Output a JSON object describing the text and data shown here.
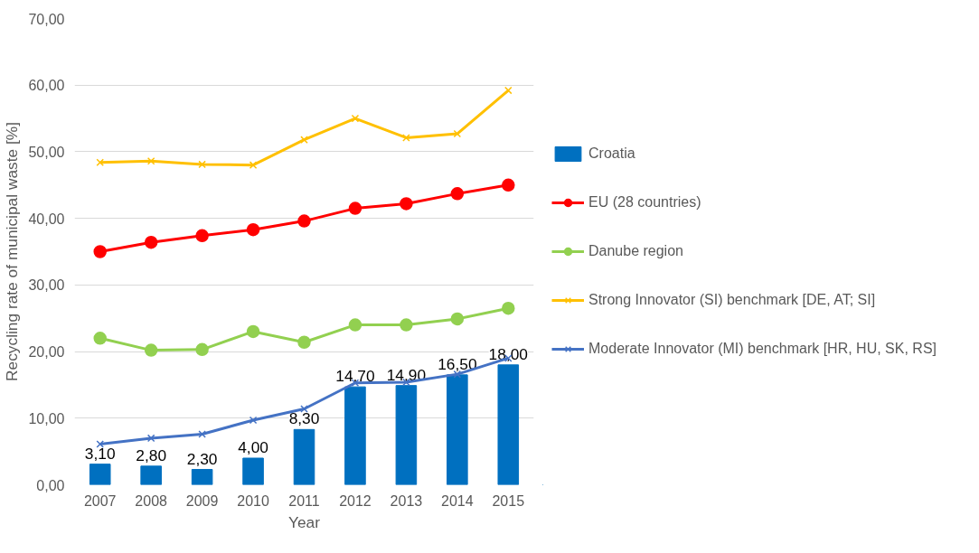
{
  "chart_data": {
    "type": "line",
    "xlabel": "Year",
    "ylabel": "Recycling rate of municipal waste [%]",
    "categories": [
      "2007",
      "2008",
      "2009",
      "2010",
      "2011",
      "2012",
      "2013",
      "2014",
      "2015"
    ],
    "ylim": [
      0,
      70
    ],
    "yticks": [
      {
        "value": 0,
        "label": "0,00"
      },
      {
        "value": 10,
        "label": "10,00"
      },
      {
        "value": 20,
        "label": "20,00"
      },
      {
        "value": 30,
        "label": "30,00"
      },
      {
        "value": 40,
        "label": "40,00"
      },
      {
        "value": 50,
        "label": "50,00"
      },
      {
        "value": 60,
        "label": "60,00"
      },
      {
        "value": 70,
        "label": "70,00"
      }
    ],
    "grid": "y",
    "legend": "right",
    "series": [
      {
        "name": "Croatia",
        "type": "bar",
        "color": "#0070c0",
        "values": [
          3.1,
          2.8,
          2.3,
          4.0,
          8.3,
          14.7,
          14.9,
          16.5,
          18.0
        ],
        "value_labels": [
          "3,10",
          "2,80",
          "2,30",
          "4,00",
          "8,30",
          "14,70",
          "14,90",
          "16,50",
          "18,00"
        ]
      },
      {
        "name": "EU (28 countries)",
        "marker": "circle",
        "color": "#ff0000",
        "values": [
          35.0,
          36.4,
          37.4,
          38.3,
          39.6,
          41.5,
          42.2,
          43.7,
          45.0
        ]
      },
      {
        "name": "Danube region",
        "marker": "circle",
        "color": "#92d050",
        "values": [
          22.0,
          20.2,
          20.3,
          23.0,
          21.4,
          24.0,
          24.0,
          24.9,
          26.5
        ]
      },
      {
        "name": "Strong Innovator (SI) benchmark [DE, AT; SI]",
        "marker": "cross",
        "color": "#ffc000",
        "values": [
          48.4,
          48.6,
          48.1,
          48.0,
          51.8,
          55.0,
          52.1,
          52.7,
          59.2
        ]
      },
      {
        "name": "Moderate Innovator (MI) benchmark [HR, HU, SK, RS]",
        "marker": "cross",
        "color": "#4472c4",
        "values": [
          6.1,
          7.0,
          7.6,
          9.7,
          11.4,
          15.3,
          15.4,
          16.6,
          19.0
        ]
      }
    ]
  }
}
